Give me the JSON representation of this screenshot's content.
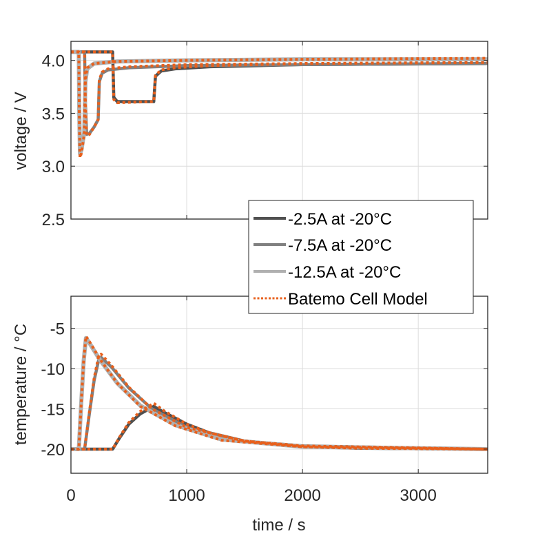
{
  "chart_data": [
    {
      "type": "line",
      "ylabel": "voltage / V",
      "xlim": [
        0,
        3600
      ],
      "ylim": [
        2.5,
        4.18
      ],
      "yticks": [
        "2.5",
        "3.0",
        "3.5",
        "4.0"
      ],
      "ytick_values": [
        2.5,
        3.0,
        3.5,
        4.0
      ],
      "xtick_values": [
        0,
        1000,
        2000,
        3000
      ],
      "grid": true,
      "series": [
        {
          "name": "-2.5A at -20°C",
          "color": "#505050",
          "x": [
            0,
            360,
            370,
            400,
            500,
            600,
            715,
            730,
            780,
            900,
            1200,
            2000,
            3600
          ],
          "y": [
            4.08,
            4.08,
            3.65,
            3.61,
            3.61,
            3.61,
            3.61,
            3.85,
            3.9,
            3.92,
            3.94,
            3.96,
            3.97
          ]
        },
        {
          "name": "-7.5A at -20°C",
          "color": "#808080",
          "x": [
            0,
            118,
            125,
            135,
            160,
            200,
            235,
            245,
            270,
            320,
            500,
            1000,
            2000,
            3600
          ],
          "y": [
            4.08,
            4.08,
            3.6,
            3.3,
            3.31,
            3.37,
            3.44,
            3.8,
            3.88,
            3.91,
            3.93,
            3.95,
            3.96,
            3.97
          ]
        },
        {
          "name": "-12.5A at -20°C",
          "color": "#b0b0b0",
          "x": [
            0,
            68,
            72,
            78,
            90,
            115,
            125,
            140,
            200,
            400,
            1000,
            2000,
            3600
          ],
          "y": [
            4.08,
            4.08,
            3.5,
            3.12,
            3.15,
            3.32,
            3.8,
            3.92,
            3.97,
            3.99,
            4.0,
            4.01,
            4.01
          ]
        },
        {
          "name": "Batemo Cell Model",
          "color": "#e8601c",
          "dotted": true,
          "x": [
            0,
            360,
            370,
            400,
            715,
            730,
            780,
            900,
            1200,
            2000,
            3600
          ],
          "y": [
            4.08,
            4.08,
            3.63,
            3.6,
            3.61,
            3.86,
            3.91,
            3.93,
            3.95,
            3.97,
            3.98
          ]
        },
        {
          "name": "Batemo Cell Model",
          "color": "#e8601c",
          "dotted": true,
          "legend": false,
          "x": [
            0,
            118,
            125,
            135,
            160,
            200,
            235,
            245,
            270,
            320,
            500,
            1000,
            2000,
            3600
          ],
          "y": [
            4.08,
            4.08,
            3.6,
            3.29,
            3.3,
            3.37,
            3.44,
            3.82,
            3.89,
            3.92,
            3.94,
            3.96,
            3.97,
            3.98
          ]
        },
        {
          "name": "Batemo Cell Model",
          "color": "#e8601c",
          "dotted": true,
          "legend": false,
          "x": [
            0,
            68,
            72,
            78,
            90,
            115,
            125,
            140,
            200,
            400,
            1000,
            2000,
            3600
          ],
          "y": [
            4.08,
            4.08,
            3.5,
            3.08,
            3.12,
            3.3,
            3.82,
            3.93,
            3.97,
            3.99,
            4.0,
            4.01,
            4.02
          ]
        }
      ]
    },
    {
      "type": "line",
      "xlabel": "time / s",
      "ylabel": "temperature / °C",
      "xlim": [
        0,
        3600
      ],
      "ylim": [
        -23,
        -1
      ],
      "xticks": [
        "0",
        "1000",
        "2000",
        "3000"
      ],
      "xtick_values": [
        0,
        1000,
        2000,
        3000
      ],
      "yticks": [
        "-20",
        "-15",
        "-10",
        "-5"
      ],
      "ytick_values": [
        -20,
        -15,
        -10,
        -5
      ],
      "grid": true,
      "series": [
        {
          "name": "-2.5A at -20°C",
          "color": "#505050",
          "x": [
            0,
            360,
            420,
            500,
            600,
            715,
            800,
            1000,
            1200,
            1500,
            2000,
            2500,
            3600
          ],
          "y": [
            -20,
            -20,
            -18.6,
            -16.9,
            -15.6,
            -14.7,
            -15.4,
            -16.9,
            -18.0,
            -19.0,
            -19.7,
            -19.9,
            -20
          ]
        },
        {
          "name": "-7.5A at -20°C",
          "color": "#808080",
          "x": [
            0,
            118,
            160,
            200,
            240,
            260,
            350,
            500,
            700,
            1000,
            1500,
            2000,
            3600
          ],
          "y": [
            -20,
            -20,
            -15.5,
            -11.5,
            -8.9,
            -8.6,
            -9.8,
            -12.4,
            -15.0,
            -17.3,
            -19.0,
            -19.6,
            -20
          ]
        },
        {
          "name": "-12.5A at -20°C",
          "color": "#b0b0b0",
          "x": [
            0,
            68,
            90,
            110,
            130,
            150,
            250,
            400,
            600,
            900,
            1300,
            2000,
            3600
          ],
          "y": [
            -20,
            -20,
            -14,
            -9,
            -6.2,
            -6.6,
            -8.9,
            -11.8,
            -14.6,
            -17.0,
            -18.8,
            -19.7,
            -20
          ]
        },
        {
          "name": "Batemo Cell Model",
          "color": "#e8601c",
          "dotted": true,
          "x": [
            0,
            360,
            420,
            500,
            600,
            715,
            800,
            1000,
            1200,
            1500,
            2000,
            2500,
            3600
          ],
          "y": [
            -20,
            -20,
            -18.5,
            -16.7,
            -15.3,
            -14.3,
            -15.2,
            -16.9,
            -18.0,
            -19.0,
            -19.7,
            -19.9,
            -20
          ]
        },
        {
          "name": "Batemo Cell Model",
          "color": "#e8601c",
          "dotted": true,
          "legend": false,
          "x": [
            0,
            118,
            160,
            200,
            240,
            260,
            350,
            500,
            700,
            1000,
            1500,
            2000,
            3600
          ],
          "y": [
            -20,
            -20,
            -15.3,
            -11.2,
            -8.4,
            -8.2,
            -9.6,
            -12.3,
            -15.0,
            -17.3,
            -19.0,
            -19.6,
            -20
          ]
        },
        {
          "name": "Batemo Cell Model",
          "color": "#e8601c",
          "dotted": true,
          "legend": false,
          "x": [
            0,
            68,
            90,
            110,
            130,
            150,
            250,
            400,
            600,
            900,
            1300,
            2000,
            3600
          ],
          "y": [
            -20,
            -20,
            -14,
            -9,
            -6.0,
            -6.4,
            -8.8,
            -11.8,
            -14.7,
            -17.1,
            -18.9,
            -19.7,
            -20
          ]
        }
      ]
    }
  ],
  "legend": {
    "placement": "bottom-right of upper axes",
    "entries": [
      {
        "label": "-2.5A at -20°C",
        "color": "#505050"
      },
      {
        "label": "-7.5A at -20°C",
        "color": "#808080"
      },
      {
        "label": "-12.5A at -20°C",
        "color": "#b0b0b0"
      },
      {
        "label": "Batemo Cell Model",
        "color": "#e8601c",
        "dotted": true
      }
    ]
  }
}
